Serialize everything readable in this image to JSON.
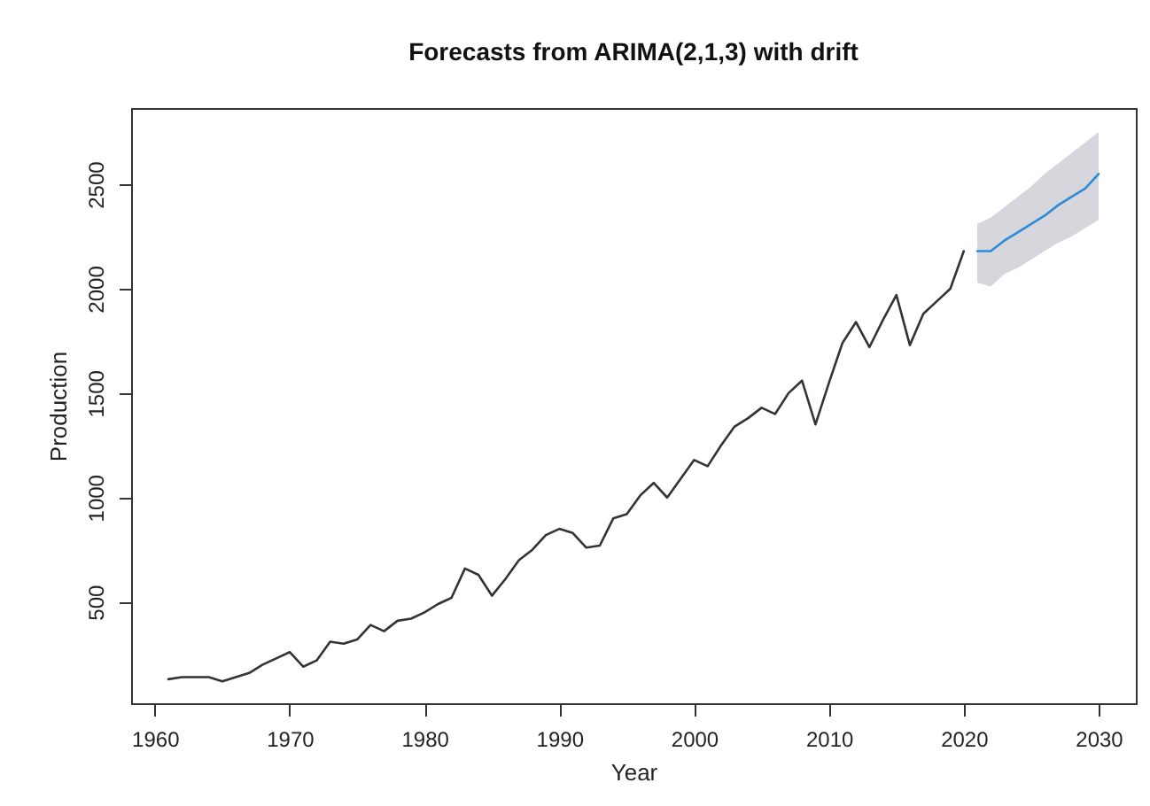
{
  "chart_data": {
    "type": "line",
    "title": "Forecasts from ARIMA(2,1,3) with drift",
    "xlabel": "Year",
    "ylabel": "Production",
    "series": [
      {
        "color": "#333333",
        "x": [
          1961,
          1962,
          1963,
          1964,
          1965,
          1966,
          1967,
          1968,
          1969,
          1970,
          1971,
          1972,
          1973,
          1974,
          1975,
          1976,
          1977,
          1978,
          1979,
          1980,
          1981,
          1982,
          1983,
          1984,
          1985,
          1986,
          1987,
          1988,
          1989,
          1990,
          1991,
          1992,
          1993,
          1994,
          1995,
          1996,
          1997,
          1998,
          1999,
          2000,
          2001,
          2002,
          2003,
          2004,
          2005,
          2006,
          2007,
          2008,
          2009,
          2010,
          2011,
          2012,
          2013,
          2014,
          2015,
          2016,
          2017,
          2018,
          2019,
          2020
        ],
        "values": [
          130,
          140,
          140,
          140,
          120,
          140,
          160,
          200,
          230,
          260,
          190,
          220,
          310,
          300,
          320,
          390,
          360,
          410,
          420,
          450,
          490,
          520,
          660,
          630,
          530,
          610,
          700,
          750,
          820,
          850,
          830,
          760,
          770,
          900,
          920,
          1010,
          1070,
          1000,
          1090,
          1180,
          1150,
          1250,
          1340,
          1380,
          1430,
          1400,
          1500,
          1560,
          1350,
          1550,
          1740,
          1840,
          1720,
          1850,
          1970,
          1730,
          1880,
          1940,
          2000,
          2180
        ]
      },
      {
        "color": "#2b8cd6",
        "x": [
          2021,
          2022,
          2023,
          2024,
          2025,
          2026,
          2027,
          2028,
          2029,
          2030
        ],
        "values": [
          2180,
          2180,
          2230,
          2270,
          2310,
          2350,
          2400,
          2440,
          2480,
          2550
        ],
        "lower": [
          2030,
          2010,
          2070,
          2100,
          2140,
          2180,
          2220,
          2250,
          2290,
          2330
        ],
        "upper": [
          2310,
          2340,
          2390,
          2440,
          2490,
          2550,
          2600,
          2650,
          2700,
          2750
        ]
      }
    ],
    "xlim": [
      1958.24,
      2032.76
    ],
    "ylim": [
      15,
      2865
    ],
    "xticks": [
      1960,
      1970,
      1980,
      1990,
      2000,
      2010,
      2020,
      2030
    ],
    "yticks": [
      500,
      1000,
      1500,
      2000,
      2500
    ]
  }
}
